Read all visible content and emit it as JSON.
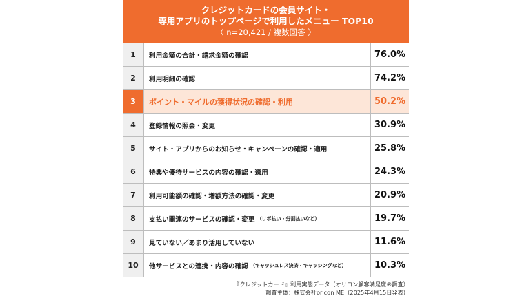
{
  "header": {
    "line1": "クレジットカードの会員サイト・",
    "line2": "専用アプリのトップページで利用したメニュー TOP10",
    "line3": "〈 n=20,421 / 複数回答 〉"
  },
  "chart_data": {
    "type": "table",
    "unit": "%",
    "highlight_rank": 3,
    "colors": {
      "accent": "#ef6c2e",
      "highlight_bg": "#fde6d8",
      "rank_bg": "#efefef"
    },
    "rows": [
      {
        "rank": "1",
        "label": "利用金額の合計・請求金額の確認",
        "note": "",
        "value": "76.0%"
      },
      {
        "rank": "2",
        "label": "利用明細の確認",
        "note": "",
        "value": "74.2%"
      },
      {
        "rank": "3",
        "label": "ポイント・マイルの獲得状況の確認・利用",
        "note": "",
        "value": "50.2%"
      },
      {
        "rank": "4",
        "label": "登録情報の照会・変更",
        "note": "",
        "value": "30.9%"
      },
      {
        "rank": "5",
        "label": "サイト・アプリからのお知らせ・キャンペーンの確認・適用",
        "note": "",
        "value": "25.8%"
      },
      {
        "rank": "6",
        "label": "特典や優待サービスの内容の確認・適用",
        "note": "",
        "value": "24.3%"
      },
      {
        "rank": "7",
        "label": "利用可能額の確認・増額方法の確認・変更",
        "note": "",
        "value": "20.9%"
      },
      {
        "rank": "8",
        "label": "支払い関連のサービスの確認・変更",
        "note": "（リボ払い・分割払いなど）",
        "value": "19.7%"
      },
      {
        "rank": "9",
        "label": "見ていない／あまり活用していない",
        "note": "",
        "value": "11.6%"
      },
      {
        "rank": "10",
        "label": "他サービスとの連携・内容の確認",
        "note": "（キャッシュレス決済・キャッシングなど）",
        "value": "10.3%"
      }
    ]
  },
  "footer": {
    "line1": "『クレジットカード』利用実態データ（オリコン顧客満足度®調査）",
    "line2": "調査主体：株式会社oricon ME（2025年4月15日発表）"
  }
}
